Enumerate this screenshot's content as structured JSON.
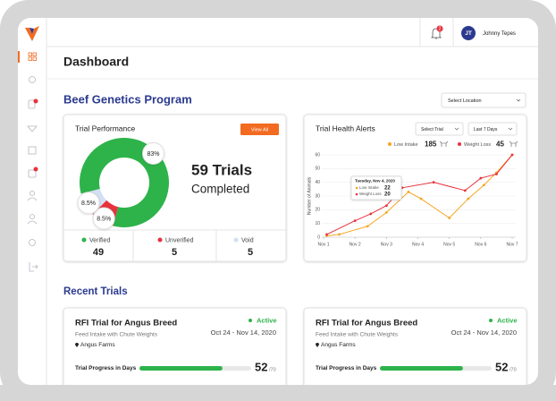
{
  "header": {
    "notification_count": "2",
    "avatar_initials": "JT",
    "user_name": "Johnny Tepes"
  },
  "page_title": "Dashboard",
  "program": {
    "title": "Beef Genetics Program",
    "location_select": "Select Location"
  },
  "trial_performance": {
    "title": "Trial Performance",
    "button": "View All",
    "trials_count": "59 Trials",
    "trials_caption": "Completed",
    "chart": {
      "type": "pie",
      "categories": [
        "Verified",
        "Unverified",
        "Void"
      ],
      "values": [
        83,
        8.5,
        8.5
      ],
      "value_labels": [
        "83%",
        "8.5%",
        "8.5%"
      ],
      "colors": [
        "#2db34a",
        "#e8323c",
        "#d3dff3"
      ]
    },
    "counts": [
      49,
      5,
      5
    ]
  },
  "health_alerts": {
    "title": "Trial Health Alerts",
    "filters": [
      "Select Trial",
      "Last 7 Days"
    ],
    "chart": {
      "type": "line",
      "y_label": "Number of Animals",
      "xlim": [
        1,
        7
      ],
      "xticks": [
        {
          "value": 1,
          "label": "Nov 1"
        },
        {
          "value": 2,
          "label": "Nov 2"
        },
        {
          "value": 3,
          "label": "Nov 3"
        },
        {
          "value": 4,
          "label": "Nov 4"
        },
        {
          "value": 5,
          "label": "Nov 5"
        },
        {
          "value": 6,
          "label": "Nov 6"
        },
        {
          "value": 7,
          "label": "Nov 7"
        }
      ],
      "ylim": [
        0,
        60
      ],
      "yticks": [
        0,
        10,
        20,
        30,
        40,
        50,
        60
      ],
      "grid": true,
      "series": [
        {
          "name": "Low Intake",
          "color": "#f5a623",
          "total": 185,
          "x": [
            1.1,
            1.5,
            2.4,
            3,
            3.7,
            4.1,
            5,
            5.6,
            6.1,
            6.5,
            7
          ],
          "values": [
            1,
            2,
            8,
            18,
            33,
            28,
            14,
            28,
            38,
            47,
            60
          ]
        },
        {
          "name": "Weight Loss",
          "color": "#e8323c",
          "total": 45,
          "x": [
            1.1,
            2,
            2.5,
            3,
            3.5,
            4.5,
            5.5,
            6,
            6.5,
            7
          ],
          "values": [
            2,
            12,
            17,
            23,
            36,
            40,
            34,
            43,
            46,
            60
          ]
        }
      ],
      "tooltip": {
        "title": "Tuesday, Nov 4, 2020",
        "items": [
          {
            "name": "Low Intake",
            "value": 22
          },
          {
            "name": "Weight Loss",
            "value": 20
          }
        ]
      }
    }
  },
  "recent_title": "Recent Trials",
  "recent_trials": [
    {
      "title": "RFI Trial for Angus Breed",
      "status": "Active",
      "subtitle": "Feed Intake with Chute Weights",
      "dates": "Oct 24 - Nov 14, 2020",
      "farm": "Angus Farms",
      "progress_label": "Trial Progress in Days",
      "progress": {
        "value": 52,
        "max": 70,
        "max_label": "/70"
      }
    },
    {
      "title": "RFI Trial for Angus Breed",
      "status": "Active",
      "subtitle": "Feed Intake with Chute Weights",
      "dates": "Oct 24 - Nov 14, 2020",
      "farm": "Angus Farms",
      "progress_label": "Trial Progress in Days",
      "progress": {
        "value": 52,
        "max": 70,
        "max_label": "/70"
      }
    }
  ]
}
